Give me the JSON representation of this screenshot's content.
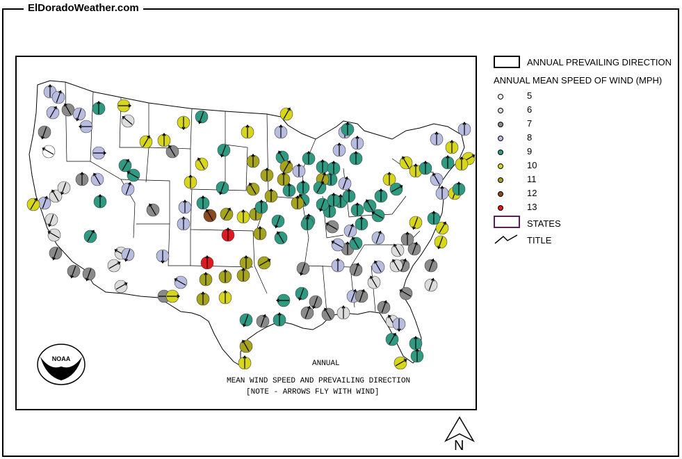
{
  "site_title": "ElDoradoWeather.com",
  "legend": {
    "prevailing": "ANNUAL PREVAILING DIRECTION",
    "speed_heading": "ANNUAL MEAN SPEED OF WIND (MPH)",
    "speeds": [
      {
        "value": "5",
        "color": "#ffffff"
      },
      {
        "value": "6",
        "color": "#dcdcdc"
      },
      {
        "value": "7",
        "color": "#8a8a8a"
      },
      {
        "value": "8",
        "color": "#b8bce0"
      },
      {
        "value": "9",
        "color": "#2e9a82"
      },
      {
        "value": "10",
        "color": "#d7d61b"
      },
      {
        "value": "11",
        "color": "#a6a41a"
      },
      {
        "value": "12",
        "color": "#8a4a1c"
      },
      {
        "value": "13",
        "color": "#e0191f"
      }
    ],
    "states": "STATES",
    "title": "TITLE"
  },
  "caption": {
    "line1": "ANNUAL",
    "line2": "MEAN WIND SPEED AND PREVAILING DIRECTION",
    "line3": "[NOTE - ARROWS FLY WITH WIND]"
  },
  "logo_text": "NOAA",
  "north_label": "N"
}
